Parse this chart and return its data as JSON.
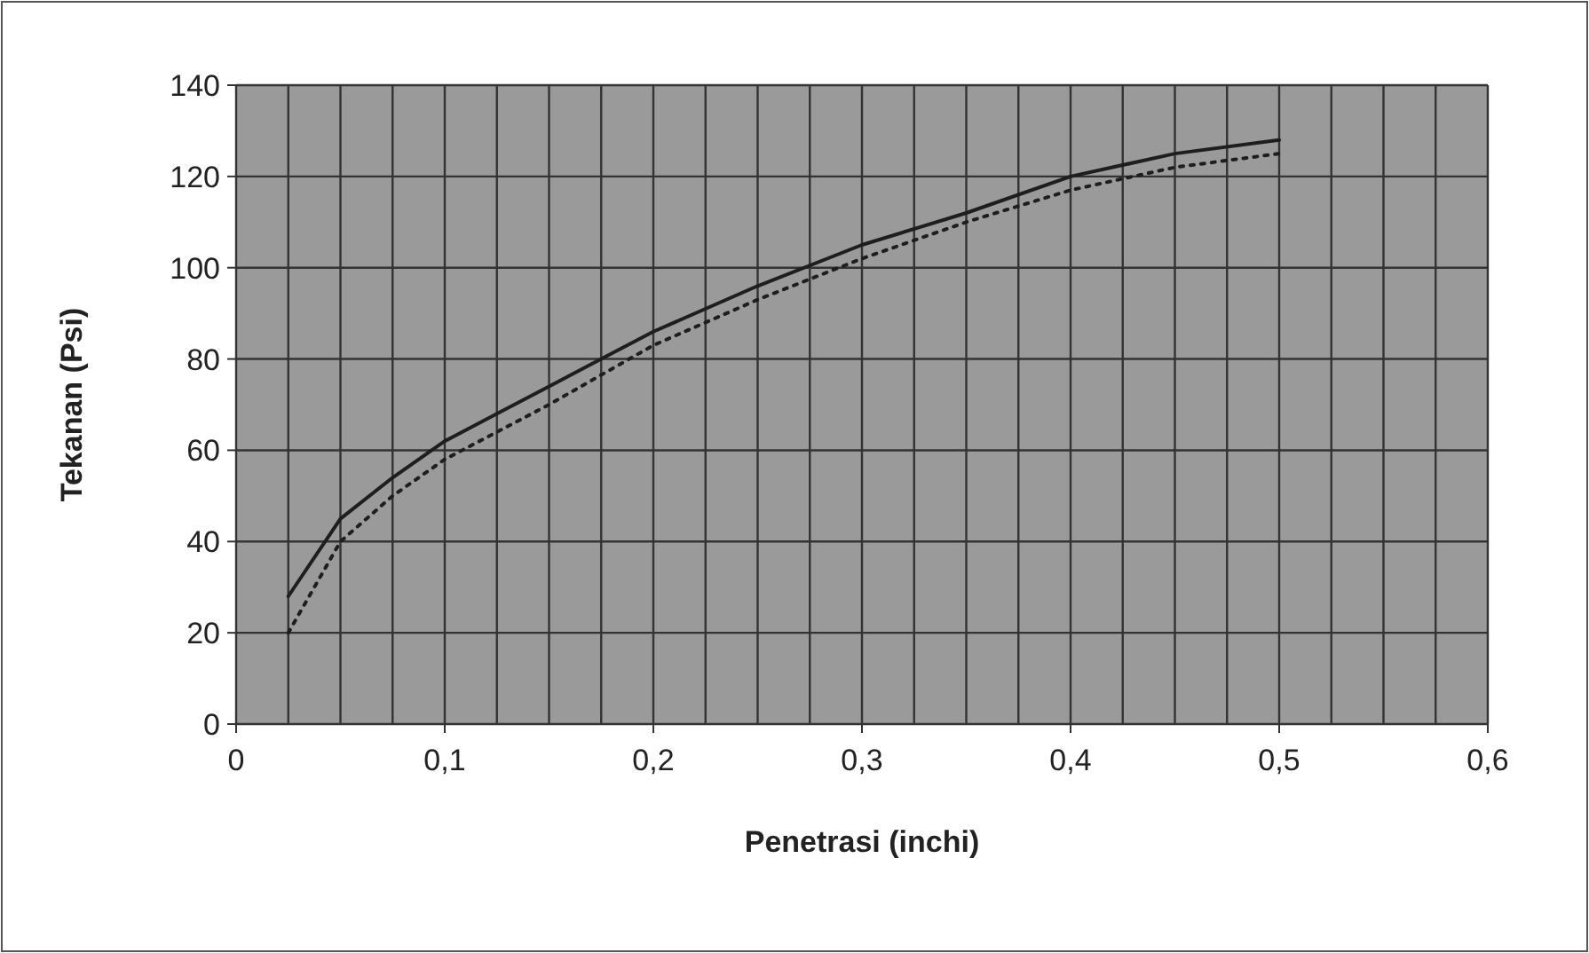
{
  "chart_data": {
    "type": "line",
    "xlabel": "Penetrasi (inchi)",
    "ylabel": "Tekanan (Psi)",
    "xlim": [
      0,
      0.6
    ],
    "ylim": [
      0,
      140
    ],
    "xticks": [
      {
        "value": 0,
        "label": "0"
      },
      {
        "value": 0.025,
        "label": null
      },
      {
        "value": 0.05,
        "label": null
      },
      {
        "value": 0.075,
        "label": null
      },
      {
        "value": 0.1,
        "label": "0,1"
      },
      {
        "value": 0.125,
        "label": null
      },
      {
        "value": 0.15,
        "label": null
      },
      {
        "value": 0.175,
        "label": null
      },
      {
        "value": 0.2,
        "label": "0,2"
      },
      {
        "value": 0.225,
        "label": null
      },
      {
        "value": 0.25,
        "label": null
      },
      {
        "value": 0.275,
        "label": null
      },
      {
        "value": 0.3,
        "label": "0,3"
      },
      {
        "value": 0.325,
        "label": null
      },
      {
        "value": 0.35,
        "label": null
      },
      {
        "value": 0.375,
        "label": null
      },
      {
        "value": 0.4,
        "label": "0,4"
      },
      {
        "value": 0.425,
        "label": null
      },
      {
        "value": 0.45,
        "label": null
      },
      {
        "value": 0.475,
        "label": null
      },
      {
        "value": 0.5,
        "label": "0,5"
      },
      {
        "value": 0.525,
        "label": null
      },
      {
        "value": 0.55,
        "label": null
      },
      {
        "value": 0.575,
        "label": null
      },
      {
        "value": 0.6,
        "label": "0,6"
      }
    ],
    "yticks": [
      0,
      20,
      40,
      60,
      80,
      100,
      120,
      140
    ],
    "grid": true,
    "series": [
      {
        "color": "#1e1e1e",
        "line_style": "solid",
        "x": [
          0.025,
          0.05,
          0.075,
          0.1,
          0.125,
          0.15,
          0.175,
          0.2,
          0.25,
          0.3,
          0.35,
          0.4,
          0.45,
          0.5
        ],
        "values": [
          28,
          45,
          54,
          62,
          68,
          74,
          80,
          86,
          96,
          105,
          112,
          120,
          125,
          128
        ]
      },
      {
        "color": "#1e1e1e",
        "line_style": "dotted",
        "x": [
          0.025,
          0.05,
          0.075,
          0.1,
          0.15,
          0.2,
          0.25,
          0.3,
          0.35,
          0.4,
          0.45,
          0.5
        ],
        "values": [
          20,
          40,
          50,
          58,
          70,
          83,
          93,
          102,
          110,
          117,
          122,
          125
        ]
      }
    ]
  }
}
